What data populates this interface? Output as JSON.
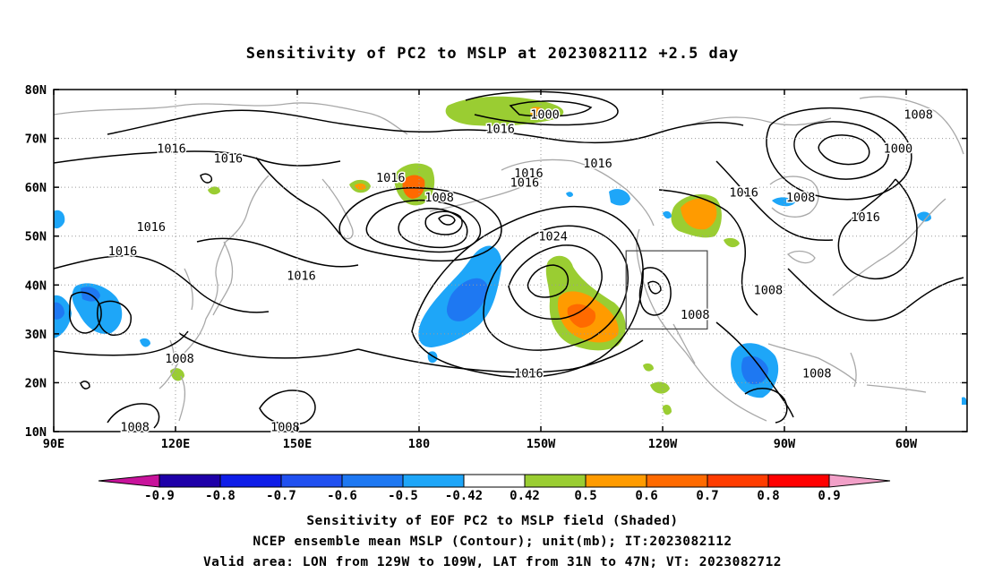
{
  "title": "Sensitivity of PC2 to MSLP at 2023082112 +2.5 day",
  "axes": {
    "lat_labels": [
      "80N",
      "70N",
      "60N",
      "50N",
      "40N",
      "30N",
      "20N",
      "10N"
    ],
    "lat_values": [
      80,
      70,
      60,
      50,
      40,
      30,
      20,
      10
    ],
    "lon_labels": [
      "90E",
      "120E",
      "150E",
      "180",
      "150W",
      "120W",
      "90W",
      "60W"
    ],
    "lon_values": [
      90,
      120,
      150,
      180,
      210,
      240,
      270,
      300
    ],
    "lon_range": [
      90,
      315
    ],
    "lat_range": [
      10,
      80
    ]
  },
  "contour_labels": [
    {
      "text": "1000",
      "lon": 211,
      "lat": 75
    },
    {
      "text": "1016",
      "lon": 200,
      "lat": 72
    },
    {
      "text": "1016",
      "lon": 119,
      "lat": 68
    },
    {
      "text": "1016",
      "lon": 133,
      "lat": 66
    },
    {
      "text": "1016",
      "lon": 173,
      "lat": 62
    },
    {
      "text": "1016",
      "lon": 207,
      "lat": 63
    },
    {
      "text": "1016",
      "lon": 206,
      "lat": 61
    },
    {
      "text": "1016",
      "lon": 224,
      "lat": 65
    },
    {
      "text": "1016",
      "lon": 260,
      "lat": 59
    },
    {
      "text": "1008",
      "lon": 303,
      "lat": 75
    },
    {
      "text": "1000",
      "lon": 298,
      "lat": 68
    },
    {
      "text": "1008",
      "lon": 185,
      "lat": 58
    },
    {
      "text": "1008",
      "lon": 274,
      "lat": 58
    },
    {
      "text": "1016",
      "lon": 290,
      "lat": 54
    },
    {
      "text": "1016",
      "lon": 114,
      "lat": 52
    },
    {
      "text": "1016",
      "lon": 107,
      "lat": 47
    },
    {
      "text": "1024",
      "lon": 213,
      "lat": 50
    },
    {
      "text": "1016",
      "lon": 151,
      "lat": 42
    },
    {
      "text": "1008",
      "lon": 266,
      "lat": 39
    },
    {
      "text": "1008",
      "lon": 248,
      "lat": 34
    },
    {
      "text": "1008",
      "lon": 121,
      "lat": 25
    },
    {
      "text": "1016",
      "lon": 207,
      "lat": 22
    },
    {
      "text": "1008",
      "lon": 278,
      "lat": 22
    },
    {
      "text": "1008",
      "lon": 110,
      "lat": 11
    },
    {
      "text": "1008",
      "lon": 147,
      "lat": 11
    }
  ],
  "colorbar": {
    "labels": [
      "-0.9",
      "-0.8",
      "-0.7",
      "-0.6",
      "-0.5",
      "-0.42",
      "0.42",
      "0.5",
      "0.6",
      "0.7",
      "0.8",
      "0.9"
    ],
    "colors": [
      "#1e00a8",
      "#0f1de8",
      "#2050f0",
      "#1e78f2",
      "#1ea6f8",
      "#ffffff",
      "#9acd32",
      "#ff9b00",
      "#ff6a00",
      "#ff3c00",
      "#ff0000"
    ],
    "low_end_color": "#c8139b",
    "high_end_color": "#f2a0c8"
  },
  "valid_area_box": {
    "lon_min": 231,
    "lon_max": 251,
    "lat_min": 31,
    "lat_max": 47
  },
  "footer": {
    "line1": "Sensitivity of EOF PC2 to MSLP field (Shaded)",
    "line2": "NCEP ensemble mean MSLP (Contour); unit(mb); IT:2023082112",
    "line3": "Valid area: LON from 129W to 109W, LAT from 31N to 47N; VT: 2023082712"
  }
}
